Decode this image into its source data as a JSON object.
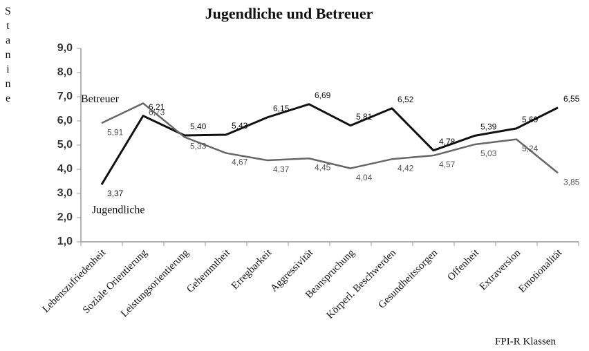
{
  "chart_data": {
    "type": "line",
    "title": "Jugendliche und Betreuer",
    "y_label": "Stanine",
    "x_label": "FPI-R Klassen",
    "categories": [
      "Lebenszufriedenheit",
      "Soziale Orientierung",
      "Leistungsorientierung",
      "Gehemmtheit",
      "Erregbarkeit",
      "Aggressivität",
      "Beanspruchung",
      "Körperl. Beschwerden",
      "Gesundheitssorgen",
      "Offenheit",
      "Extraversion",
      "Emotionalität"
    ],
    "series": [
      {
        "name": "Jugendliche",
        "color": "#111111",
        "values": [
          3.37,
          6.21,
          5.4,
          5.43,
          6.15,
          6.69,
          5.81,
          6.52,
          4.78,
          5.39,
          5.69,
          6.55
        ],
        "value_labels": [
          "3,37",
          "6,21",
          "5,40",
          "5,43",
          "6,15",
          "6,69",
          "5,81",
          "6,52",
          "4,78",
          "5,39",
          "5,69",
          "6,55"
        ]
      },
      {
        "name": "Betreuer",
        "color": "#666666",
        "values": [
          5.91,
          6.73,
          5.33,
          4.67,
          4.37,
          4.45,
          4.04,
          4.42,
          4.57,
          5.03,
          5.24,
          3.85
        ],
        "value_labels": [
          "5,91",
          "6,73",
          "5,33",
          "4,67",
          "4,37",
          "4,45",
          "4,04",
          "4,42",
          "4,57",
          "5,03",
          "5,24",
          "3,85"
        ]
      }
    ],
    "ylim": [
      1,
      9
    ],
    "yticks": [
      {
        "value": 1,
        "label": "1,0"
      },
      {
        "value": 2,
        "label": "2,0"
      },
      {
        "value": 3,
        "label": "3,0"
      },
      {
        "value": 4,
        "label": "4,0"
      },
      {
        "value": 5,
        "label": "5,0"
      },
      {
        "value": 6,
        "label": "6,0"
      },
      {
        "value": 7,
        "label": "7,0"
      },
      {
        "value": 8,
        "label": "8,0"
      },
      {
        "value": 9,
        "label": "9,0"
      }
    ],
    "grid": false
  }
}
